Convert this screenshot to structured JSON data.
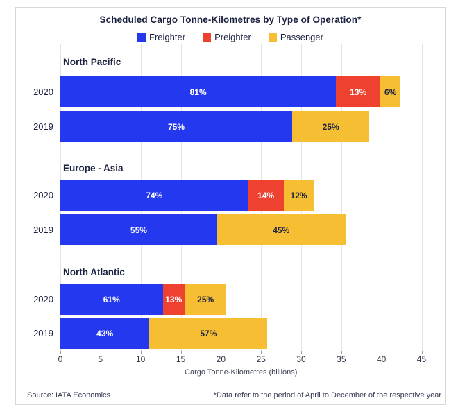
{
  "title": "Scheduled Cargo Tonne-Kilometres by Type of Operation*",
  "legend": [
    {
      "label": "Freighter",
      "color": "#2438f0"
    },
    {
      "label": "Preighter",
      "color": "#ef4130"
    },
    {
      "label": "Passenger",
      "color": "#f5be33"
    }
  ],
  "chart_data": {
    "type": "bar",
    "orientation": "horizontal-stacked",
    "title": "Scheduled Cargo Tonne-Kilometres by Type of Operation*",
    "xlabel": "Cargo Tonne-Kilometres (billions)",
    "x_ticks": [
      0,
      5,
      10,
      15,
      20,
      25,
      30,
      35,
      40,
      45
    ],
    "xlim": [
      0,
      45
    ],
    "grid": true,
    "legend_position": "top",
    "series_names": [
      "Freighter",
      "Preighter",
      "Passenger"
    ],
    "series_colors": {
      "Freighter": "#2438f0",
      "Preighter": "#ef4130",
      "Passenger": "#f5be33"
    },
    "series_label_colors": {
      "Freighter": "#ffffff",
      "Preighter": "#ffffff",
      "Passenger": "#1b2140"
    },
    "groups": [
      {
        "name": "North Pacific",
        "bars": [
          {
            "year": "2020",
            "total": 42.4,
            "segments": [
              {
                "series": "Freighter",
                "pct": 81,
                "value": 34.3,
                "label": "81%"
              },
              {
                "series": "Preighter",
                "pct": 13,
                "value": 5.5,
                "label": "13%"
              },
              {
                "series": "Passenger",
                "pct": 6,
                "value": 2.5,
                "label": "6%"
              }
            ]
          },
          {
            "year": "2019",
            "total": 38.5,
            "segments": [
              {
                "series": "Freighter",
                "pct": 75,
                "value": 28.9,
                "label": "75%"
              },
              {
                "series": "Passenger",
                "pct": 25,
                "value": 9.6,
                "label": "25%"
              }
            ]
          }
        ]
      },
      {
        "name": "Europe - Asia",
        "bars": [
          {
            "year": "2020",
            "total": 31.6,
            "segments": [
              {
                "series": "Freighter",
                "pct": 74,
                "value": 23.4,
                "label": "74%"
              },
              {
                "series": "Preighter",
                "pct": 14,
                "value": 4.4,
                "label": "14%"
              },
              {
                "series": "Passenger",
                "pct": 12,
                "value": 3.8,
                "label": "12%"
              }
            ]
          },
          {
            "year": "2019",
            "total": 35.5,
            "segments": [
              {
                "series": "Freighter",
                "pct": 55,
                "value": 19.5,
                "label": "55%"
              },
              {
                "series": "Passenger",
                "pct": 45,
                "value": 16.0,
                "label": "45%"
              }
            ]
          }
        ]
      },
      {
        "name": "North Atlantic",
        "bars": [
          {
            "year": "2020",
            "total": 20.7,
            "segments": [
              {
                "series": "Freighter",
                "pct": 61,
                "value": 12.6,
                "label": "61%"
              },
              {
                "series": "Preighter",
                "pct": 13,
                "value": 2.7,
                "label": "13%"
              },
              {
                "series": "Passenger",
                "pct": 25,
                "value": 5.2,
                "label": "25%"
              }
            ]
          },
          {
            "year": "2019",
            "total": 25.8,
            "segments": [
              {
                "series": "Freighter",
                "pct": 43,
                "value": 11.1,
                "label": "43%"
              },
              {
                "series": "Passenger",
                "pct": 57,
                "value": 14.7,
                "label": "57%"
              }
            ]
          }
        ]
      }
    ]
  },
  "footer": {
    "source": "Source: IATA Economics",
    "note": "*Data refer to the period of April to December of the respective year"
  }
}
